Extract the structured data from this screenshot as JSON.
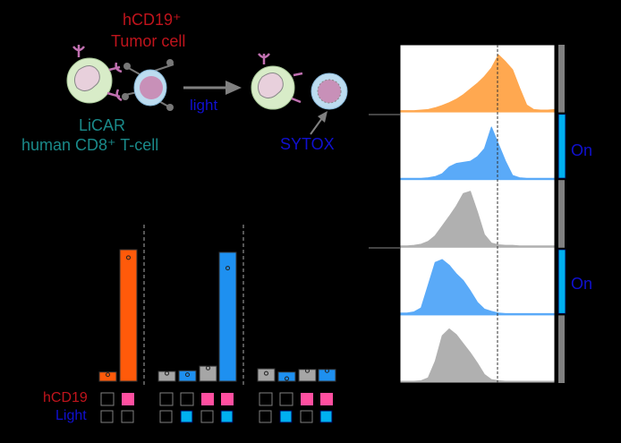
{
  "schematic": {
    "tumor_label_1": "hCD19⁺",
    "tumor_label_2": "Tumor cell",
    "tcell_label_1": "LiCAR",
    "tcell_label_2": "human CD8⁺ T-cell",
    "arrow_label": "light",
    "stain_label": "SYTOX",
    "colors": {
      "tumor": "#c0141c",
      "tcell": "#1a8a8a",
      "light": "#1010d0"
    }
  },
  "chart_data": [
    {
      "type": "bar",
      "groups": [
        {
          "values": [
            7,
            100
          ],
          "dots": [
            5,
            94
          ],
          "colors": [
            "#ff5a0a",
            "#ff5a0a"
          ],
          "hCD19": [
            false,
            true
          ],
          "Light": [
            false,
            false
          ]
        },
        {
          "values": [
            7.5,
            8,
            11.5,
            98
          ],
          "dots": [
            6,
            5,
            10,
            86
          ],
          "colors": [
            "#a6a6a6",
            "#1e90f0",
            "#a6a6a6",
            "#1e90f0"
          ],
          "hCD19": [
            false,
            false,
            true,
            true
          ],
          "Light": [
            false,
            true,
            false,
            true
          ]
        },
        {
          "values": [
            9.5,
            7,
            9,
            9
          ],
          "dots": [
            6,
            2,
            8,
            8
          ],
          "colors": [
            "#a6a6a6",
            "#1e90f0",
            "#a6a6a6",
            "#1e90f0"
          ],
          "hCD19": [
            false,
            false,
            true,
            true
          ],
          "Light": [
            false,
            true,
            false,
            true
          ]
        }
      ],
      "row_labels": {
        "hCD19": "hCD19",
        "Light": "Light"
      },
      "indicator_colors": {
        "hCD19": "#ff4fa0",
        "Light": "#00b0f0",
        "off": "#808080"
      },
      "axes": "none"
    },
    {
      "type": "area",
      "description_free": true,
      "histograms": [
        {
          "color": "#ffa850",
          "light": "off",
          "values": [
            0,
            0,
            0,
            1,
            2,
            5,
            9,
            14,
            20,
            28,
            38,
            48,
            60,
            75,
            98,
            86,
            72,
            40,
            10,
            2,
            1,
            1,
            2
          ]
        },
        {
          "color": "#5aaaf8",
          "light": "on",
          "values": [
            0,
            0,
            0,
            0,
            1,
            3,
            8,
            20,
            26,
            28,
            30,
            38,
            52,
            90,
            60,
            30,
            5,
            1,
            0,
            0,
            0,
            0,
            0
          ]
        },
        {
          "color": "#b0b0b0",
          "light": "off",
          "values": [
            0,
            0,
            1,
            3,
            8,
            18,
            35,
            52,
            70,
            92,
            96,
            60,
            20,
            5,
            2,
            1,
            1,
            0,
            0,
            0,
            0,
            0,
            0
          ]
        },
        {
          "color": "#5aaaf8",
          "light": "on",
          "values": [
            1,
            1,
            3,
            10,
            50,
            90,
            95,
            85,
            70,
            58,
            40,
            20,
            8,
            4,
            1,
            0,
            0,
            0,
            0,
            0,
            0,
            0,
            0
          ]
        },
        {
          "color": "#b0b0b0",
          "light": "off",
          "values": [
            0,
            0,
            0,
            1,
            6,
            35,
            80,
            92,
            82,
            66,
            50,
            32,
            12,
            3,
            1,
            0,
            0,
            0,
            0,
            0,
            0,
            0,
            0
          ]
        }
      ],
      "light_label": "On",
      "light_colors": {
        "on": "#00b0f0",
        "off": "#808080"
      },
      "reference_line": "dashed"
    }
  ]
}
